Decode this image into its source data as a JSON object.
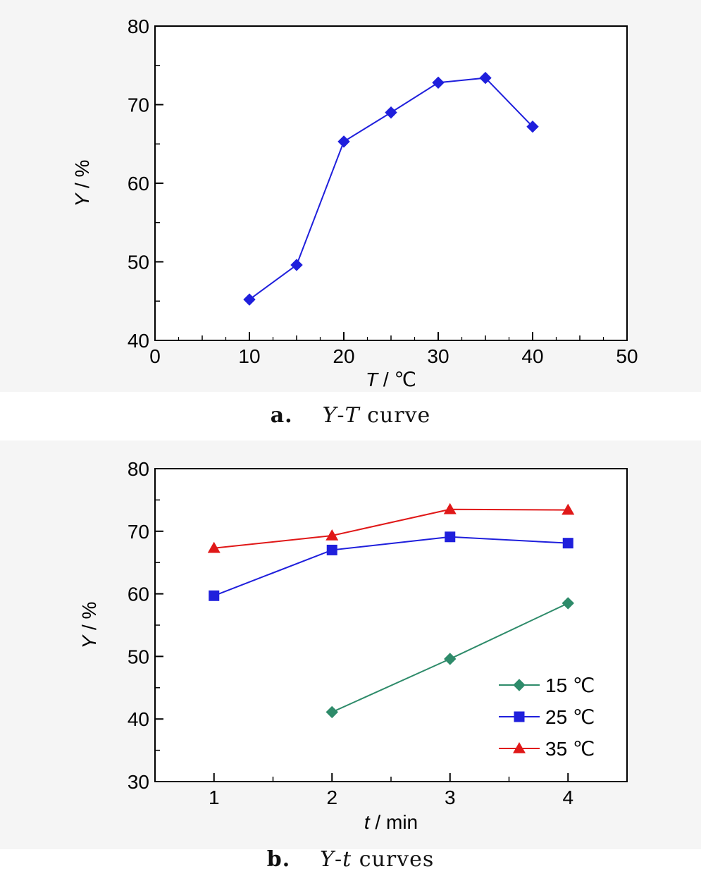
{
  "chart_data": [
    {
      "type": "line",
      "x": [
        10,
        15,
        20,
        25,
        30,
        35,
        40
      ],
      "series": [
        {
          "values": [
            45.2,
            49.6,
            65.3,
            69.0,
            72.8,
            73.4,
            67.2
          ],
          "color": "#1f1fdc",
          "marker": "diamond"
        }
      ],
      "xlabel": {
        "var": "T",
        "rest": " / ℃"
      },
      "ylabel": {
        "var": "Y",
        "rest": " / %"
      },
      "xlim": [
        0,
        50
      ],
      "ylim": [
        40,
        80
      ],
      "xticks": [
        0,
        10,
        20,
        30,
        40,
        50
      ],
      "yticks": [
        40,
        50,
        60,
        70,
        80
      ],
      "caption": {
        "tag": "a.",
        "var1": "Y",
        "dash": "-",
        "var2": "T",
        "rest": " curve"
      }
    },
    {
      "type": "line",
      "x": [
        1,
        2,
        3,
        4
      ],
      "series": [
        {
          "name": "15 ℃",
          "x": [
            2,
            3,
            4
          ],
          "values": [
            41.1,
            49.6,
            58.5
          ],
          "color": "#2e8b6a",
          "marker": "diamond"
        },
        {
          "name": "25 ℃",
          "x": [
            1,
            2,
            3,
            4
          ],
          "values": [
            59.7,
            67.0,
            69.1,
            68.1
          ],
          "color": "#1f1fdc",
          "marker": "square"
        },
        {
          "name": "35 ℃",
          "x": [
            1,
            2,
            3,
            4
          ],
          "values": [
            67.3,
            69.3,
            73.5,
            73.4
          ],
          "color": "#e01818",
          "marker": "triangle"
        }
      ],
      "xlabel": {
        "var": "t",
        "rest": " / min"
      },
      "ylabel": {
        "var": "Y",
        "rest": " / %"
      },
      "xlim": [
        0.5,
        4.5
      ],
      "ylim": [
        30,
        80
      ],
      "xticks": [
        1,
        2,
        3,
        4
      ],
      "yticks": [
        30,
        40,
        50,
        60,
        70,
        80
      ],
      "legend_position": "lower-right",
      "caption": {
        "tag": "b.",
        "var1": "Y",
        "dash": "-",
        "var2": "t",
        "rest": " curves"
      }
    }
  ]
}
